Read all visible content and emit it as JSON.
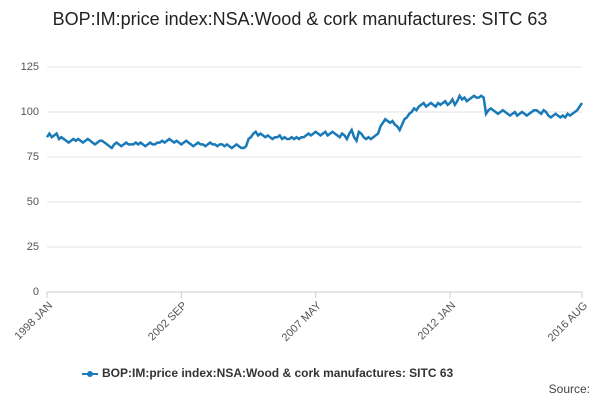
{
  "chart_data": {
    "type": "line",
    "title": "BOP:IM:price index:NSA:Wood & cork manufactures: SITC 63",
    "source": "Source:",
    "categories": [
      "1998 JAN",
      null,
      null,
      null,
      null,
      null,
      null,
      null,
      null,
      null,
      null,
      null,
      null,
      null,
      null,
      null,
      null,
      null,
      null,
      null,
      null,
      null,
      null,
      null,
      null,
      null,
      null,
      null,
      null,
      null,
      null,
      null,
      null,
      null,
      null,
      null,
      null,
      null,
      null,
      null,
      null,
      null,
      null,
      null,
      null,
      null,
      null,
      null,
      null,
      null,
      null,
      null,
      null,
      null,
      null,
      null,
      "2002 SEP",
      null,
      null,
      null,
      null,
      null,
      null,
      null,
      null,
      null,
      null,
      null,
      null,
      null,
      null,
      null,
      null,
      null,
      null,
      null,
      null,
      null,
      null,
      null,
      null,
      null,
      null,
      null,
      null,
      null,
      null,
      null,
      null,
      null,
      null,
      null,
      null,
      null,
      null,
      null,
      null,
      null,
      null,
      null,
      null,
      null,
      null,
      null,
      null,
      null,
      null,
      null,
      null,
      null,
      null,
      null,
      "2007 MAY",
      null,
      null,
      null,
      null,
      null,
      null,
      null,
      null,
      null,
      null,
      null,
      null,
      null,
      null,
      null,
      null,
      null,
      null,
      null,
      null,
      null,
      null,
      null,
      null,
      null,
      null,
      null,
      null,
      null,
      null,
      null,
      null,
      null,
      null,
      null,
      null,
      null,
      null,
      null,
      null,
      null,
      null,
      null,
      null,
      null,
      null,
      null,
      null,
      null,
      null,
      null,
      null,
      null,
      null,
      null,
      "2012 JAN",
      null,
      null,
      null,
      null,
      null,
      null,
      null,
      null,
      null,
      null,
      null,
      null,
      null,
      null,
      null,
      null,
      null,
      null,
      null,
      null,
      null,
      null,
      null,
      null,
      null,
      null,
      null,
      null,
      null,
      null,
      null,
      null,
      null,
      null,
      null,
      null,
      null,
      null,
      null,
      null,
      null,
      null,
      null,
      null,
      null,
      null,
      null,
      null,
      null,
      null,
      null,
      null,
      null,
      null,
      "2016 AUG"
    ],
    "series": [
      {
        "name": "BOP:IM:price index:NSA:Wood & cork manufactures: SITC 63",
        "color": "#1a7ab8",
        "values": [
          86,
          88,
          86,
          87,
          88,
          85,
          86,
          85,
          84,
          83,
          84,
          85,
          84,
          85,
          84,
          83,
          84,
          85,
          84,
          83,
          82,
          83,
          84,
          84,
          83,
          82,
          81,
          80,
          82,
          83,
          82,
          81,
          82,
          83,
          82,
          82,
          82,
          83,
          82,
          83,
          82,
          81,
          82,
          83,
          82,
          82,
          83,
          83,
          84,
          83,
          84,
          85,
          84,
          83,
          84,
          83,
          82,
          83,
          84,
          83,
          82,
          81,
          82,
          83,
          82,
          82,
          81,
          82,
          83,
          82,
          82,
          81,
          82,
          82,
          81,
          82,
          81,
          80,
          81,
          82,
          81,
          80,
          80,
          81,
          85,
          86,
          88,
          89,
          87,
          88,
          87,
          86,
          87,
          86,
          85,
          86,
          86,
          87,
          85,
          86,
          85,
          85,
          86,
          85,
          86,
          85,
          86,
          86,
          87,
          88,
          87,
          88,
          89,
          88,
          87,
          88,
          89,
          87,
          88,
          89,
          88,
          87,
          86,
          88,
          87,
          85,
          88,
          90,
          86,
          84,
          89,
          88,
          86,
          85,
          86,
          85,
          86,
          87,
          88,
          92,
          94,
          96,
          95,
          94,
          95,
          93,
          92,
          90,
          93,
          96,
          97,
          99,
          100,
          102,
          101,
          103,
          104,
          105,
          103,
          104,
          105,
          104,
          103,
          105,
          104,
          105,
          106,
          104,
          105,
          107,
          104,
          106,
          109,
          107,
          108,
          106,
          107,
          108,
          109,
          108,
          108,
          109,
          108,
          99,
          101,
          102,
          101,
          100,
          99,
          100,
          101,
          100,
          99,
          98,
          99,
          100,
          98,
          99,
          100,
          99,
          98,
          99,
          100,
          101,
          101,
          100,
          99,
          101,
          100,
          98,
          97,
          98,
          99,
          98,
          97,
          98,
          97,
          99,
          98,
          99,
          100,
          101,
          103,
          105
        ]
      }
    ],
    "ylim": [
      0,
      125
    ],
    "yticks": [
      0,
      25,
      50,
      75,
      100,
      125
    ],
    "grid": true
  }
}
